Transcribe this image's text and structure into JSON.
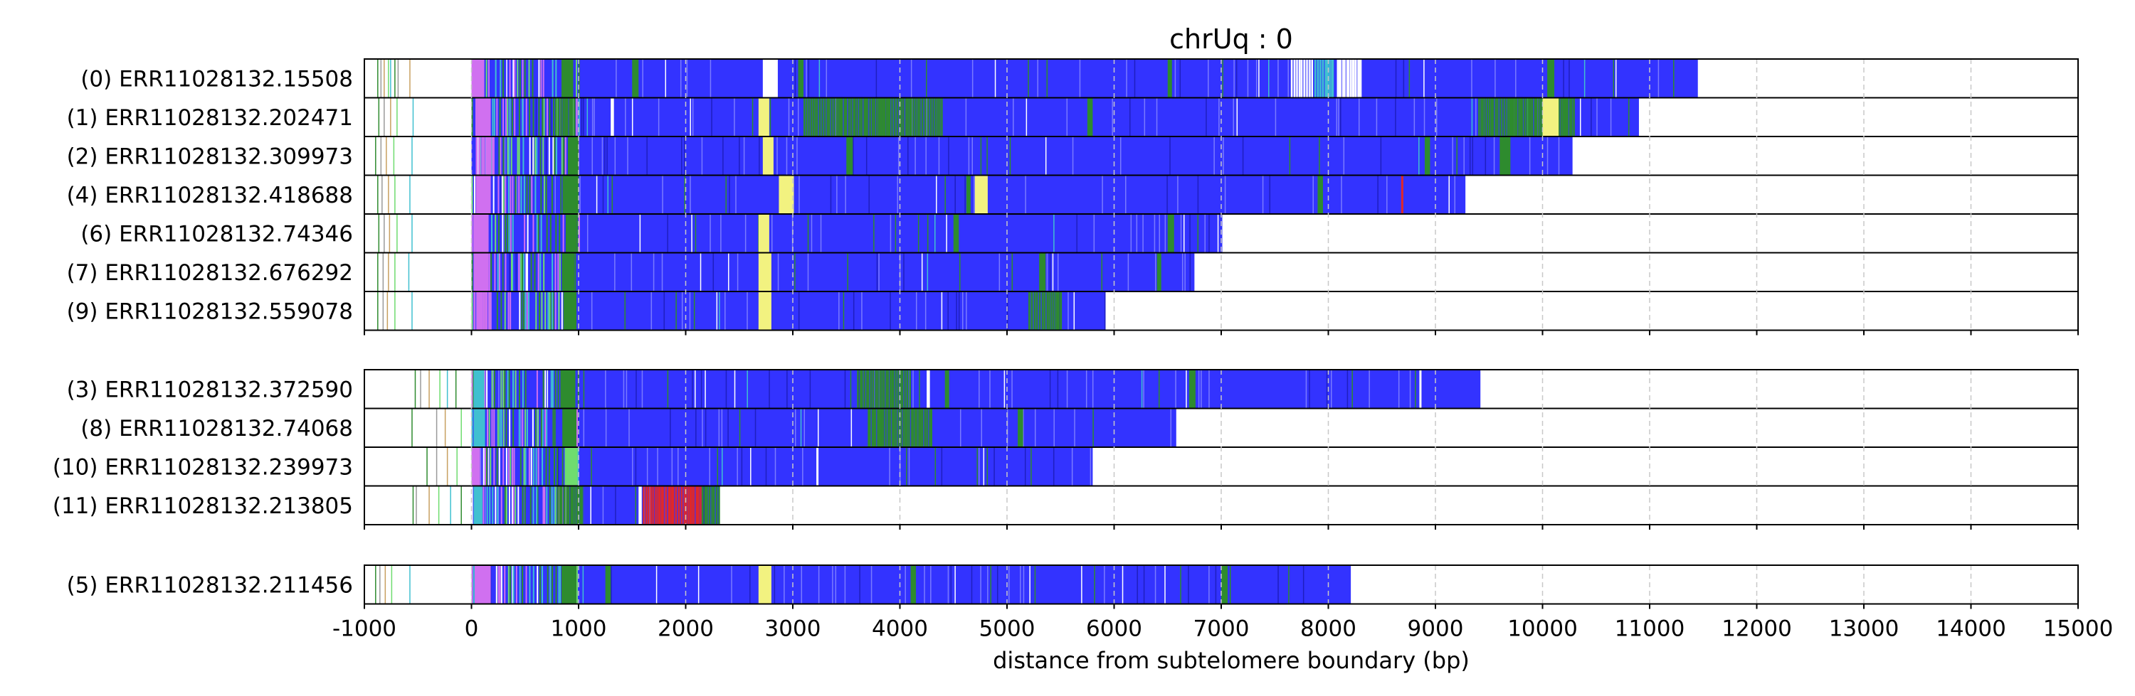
{
  "chart_data": {
    "type": "bar",
    "title": "chrUq : 0",
    "xlabel": "distance from subtelomere boundary (bp)",
    "ylabel": "",
    "xlim": [
      -1000,
      15000
    ],
    "x_ticks": [
      -1000,
      0,
      1000,
      2000,
      3000,
      4000,
      5000,
      6000,
      7000,
      8000,
      9000,
      10000,
      11000,
      12000,
      13000,
      14000,
      15000
    ],
    "x_tick_labels": [
      "-1000",
      "0",
      "1000",
      "2000",
      "3000",
      "4000",
      "5000",
      "6000",
      "7000",
      "8000",
      "9000",
      "10000",
      "11000",
      "12000",
      "13000",
      "14000",
      "15000"
    ],
    "grid": "vertical dashed",
    "colors": {
      "main": "#3333ff",
      "green": "#2e8b2e",
      "light_green": "#6fdc6f",
      "yellow": "#f2f280",
      "magenta": "#d070f0",
      "cyan": "#40c0d0",
      "red": "#e02828",
      "gray": "#9a9a9a",
      "white": "#ffffff"
    },
    "groups": [
      {
        "reads": [
          {
            "label": "(0) ERR11028132.15508",
            "end": 11450,
            "pre_lines": [
              -880,
              -850,
              -820,
              -780,
              -760,
              -720,
              -690,
              -580
            ],
            "features": [
              {
                "type": "magenta",
                "start": 0,
                "end": 120
              },
              {
                "type": "green",
                "start": 850,
                "end": 950
              },
              {
                "type": "green",
                "start": 1500,
                "end": 1560
              },
              {
                "type": "white",
                "start": 2720,
                "end": 2860
              },
              {
                "type": "green",
                "start": 3050,
                "end": 3100
              },
              {
                "type": "green",
                "start": 6500,
                "end": 6540
              },
              {
                "type": "white",
                "start": 7650,
                "end": 7850
              },
              {
                "type": "cyan",
                "start": 7870,
                "end": 8050
              },
              {
                "type": "white",
                "start": 8080,
                "end": 8300
              },
              {
                "type": "green",
                "start": 10050,
                "end": 10110
              }
            ]
          },
          {
            "label": "(1) ERR11028132.202471",
            "end": 10900,
            "pre_lines": [
              -870,
              -820,
              -760,
              -700,
              -550
            ],
            "features": [
              {
                "type": "magenta",
                "start": 50,
                "end": 180
              },
              {
                "type": "green",
                "start": 780,
                "end": 960
              },
              {
                "type": "white",
                "start": 1300,
                "end": 1330
              },
              {
                "type": "yellow",
                "start": 2680,
                "end": 2780
              },
              {
                "type": "green",
                "start": 3100,
                "end": 4400
              },
              {
                "type": "green",
                "start": 5750,
                "end": 5800
              },
              {
                "type": "green",
                "start": 9400,
                "end": 10300
              },
              {
                "type": "yellow",
                "start": 10000,
                "end": 10150
              }
            ]
          },
          {
            "label": "(2) ERR11028132.309973",
            "end": 10280,
            "pre_lines": [
              -900,
              -850,
              -800,
              -730,
              -560
            ],
            "features": [
              {
                "type": "magenta",
                "start": 40,
                "end": 200
              },
              {
                "type": "green",
                "start": 900,
                "end": 1000
              },
              {
                "type": "yellow",
                "start": 2720,
                "end": 2820
              },
              {
                "type": "green",
                "start": 3500,
                "end": 3560
              },
              {
                "type": "green",
                "start": 8900,
                "end": 8950
              },
              {
                "type": "green",
                "start": 9600,
                "end": 9700
              }
            ]
          },
          {
            "label": "(4) ERR11028132.418688",
            "end": 9280,
            "pre_lines": [
              -880,
              -840,
              -780,
              -720,
              -580
            ],
            "features": [
              {
                "type": "magenta",
                "start": 40,
                "end": 180
              },
              {
                "type": "green",
                "start": 850,
                "end": 1000
              },
              {
                "type": "yellow",
                "start": 2870,
                "end": 3010
              },
              {
                "type": "green",
                "start": 4620,
                "end": 4660
              },
              {
                "type": "yellow",
                "start": 4700,
                "end": 4820
              },
              {
                "type": "green",
                "start": 7900,
                "end": 7950
              },
              {
                "type": "red",
                "start": 8680,
                "end": 8700
              }
            ]
          },
          {
            "label": "(6) ERR11028132.74346",
            "end": 7010,
            "pre_lines": [
              -870,
              -820,
              -770,
              -700,
              -560
            ],
            "features": [
              {
                "type": "magenta",
                "start": 20,
                "end": 160
              },
              {
                "type": "green",
                "start": 880,
                "end": 980
              },
              {
                "type": "yellow",
                "start": 2680,
                "end": 2780
              },
              {
                "type": "green",
                "start": 4500,
                "end": 4550
              },
              {
                "type": "green",
                "start": 6500,
                "end": 6560
              }
            ]
          },
          {
            "label": "(7) ERR11028132.676292",
            "end": 6750,
            "pre_lines": [
              -880,
              -830,
              -780,
              -720,
              -590
            ],
            "features": [
              {
                "type": "magenta",
                "start": 20,
                "end": 160
              },
              {
                "type": "green",
                "start": 850,
                "end": 960
              },
              {
                "type": "yellow",
                "start": 2680,
                "end": 2800
              },
              {
                "type": "green",
                "start": 5300,
                "end": 5360
              },
              {
                "type": "green",
                "start": 6400,
                "end": 6440
              }
            ]
          },
          {
            "label": "(9) ERR11028132.559078",
            "end": 5920,
            "pre_lines": [
              -880,
              -830,
              -790,
              -720,
              -560
            ],
            "features": [
              {
                "type": "magenta",
                "start": 20,
                "end": 180
              },
              {
                "type": "green",
                "start": 860,
                "end": 980
              },
              {
                "type": "yellow",
                "start": 2680,
                "end": 2800
              },
              {
                "type": "green",
                "start": 5200,
                "end": 5500
              }
            ]
          }
        ]
      },
      {
        "reads": [
          {
            "label": "(3) ERR11028132.372590",
            "end": 9420,
            "pre_lines": [
              -530,
              -480,
              -400,
              -300,
              -230,
              -150
            ],
            "features": [
              {
                "type": "cyan",
                "start": 20,
                "end": 120
              },
              {
                "type": "green",
                "start": 830,
                "end": 970
              },
              {
                "type": "green",
                "start": 3600,
                "end": 4100
              },
              {
                "type": "white",
                "start": 4250,
                "end": 4280
              },
              {
                "type": "green",
                "start": 4420,
                "end": 4460
              },
              {
                "type": "green",
                "start": 6700,
                "end": 6760
              },
              {
                "type": "white",
                "start": 8850,
                "end": 8870
              }
            ]
          },
          {
            "label": "(8) ERR11028132.74068",
            "end": 6580,
            "pre_lines": [
              -560,
              -330,
              -250,
              -100
            ],
            "features": [
              {
                "type": "cyan",
                "start": 20,
                "end": 120
              },
              {
                "type": "green",
                "start": 850,
                "end": 980
              },
              {
                "type": "green",
                "start": 3700,
                "end": 4300
              },
              {
                "type": "green",
                "start": 5100,
                "end": 5150
              }
            ]
          },
          {
            "label": "(10) ERR11028132.239973",
            "end": 5800,
            "pre_lines": [
              -420,
              -330,
              -230,
              -140
            ],
            "features": [
              {
                "type": "magenta",
                "start": 10,
                "end": 80
              },
              {
                "type": "light_green",
                "start": 870,
                "end": 990
              },
              {
                "type": "white",
                "start": 3220,
                "end": 3240
              }
            ]
          },
          {
            "label": "(11) ERR11028132.213805",
            "end": 2310,
            "pre_lines": [
              -550,
              -520,
              -400,
              -310,
              -200,
              -100
            ],
            "features": [
              {
                "type": "cyan",
                "start": 20,
                "end": 100
              },
              {
                "type": "green",
                "start": 800,
                "end": 1050
              },
              {
                "type": "white",
                "start": 1560,
                "end": 1590
              },
              {
                "type": "red",
                "start": 1600,
                "end": 2150
              },
              {
                "type": "green",
                "start": 2150,
                "end": 2310
              }
            ]
          }
        ]
      },
      {
        "reads": [
          {
            "label": "(5) ERR11028132.211456",
            "end": 8210,
            "pre_lines": [
              -900,
              -860,
              -810,
              -750,
              -580
            ],
            "features": [
              {
                "type": "magenta",
                "start": 30,
                "end": 180
              },
              {
                "type": "green",
                "start": 850,
                "end": 980
              },
              {
                "type": "green",
                "start": 1250,
                "end": 1300
              },
              {
                "type": "yellow",
                "start": 2680,
                "end": 2800
              },
              {
                "type": "green",
                "start": 4100,
                "end": 4150
              },
              {
                "type": "green",
                "start": 7000,
                "end": 7060
              }
            ]
          }
        ]
      }
    ]
  }
}
